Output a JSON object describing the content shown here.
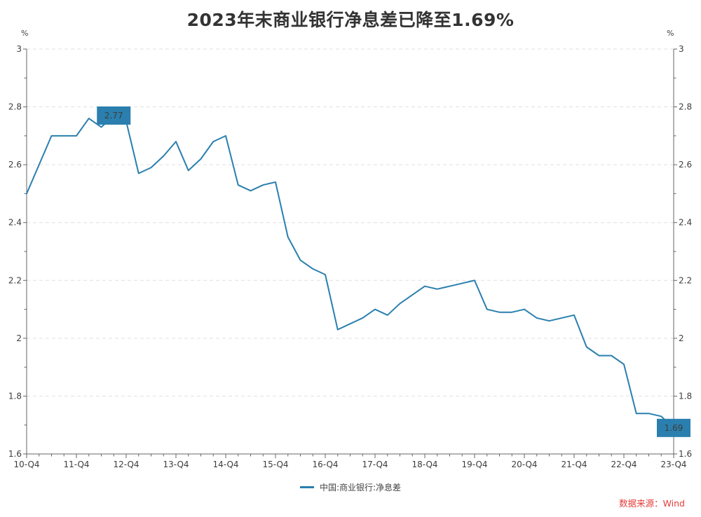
{
  "title": {
    "text": "2023年末商业银行净息差已降至1.69%"
  },
  "chart_data": {
    "type": "line",
    "title": "2023年末商业银行净息差已降至1.69%",
    "y_axis": {
      "unit": "%",
      "min": 1.6,
      "max": 3,
      "major_step": 0.2,
      "minor_step": 0.1,
      "tick_labels": [
        "3",
        "2.8",
        "2.6",
        "2.4",
        "2.2",
        "2",
        "1.8",
        "1.6"
      ],
      "sides": "both",
      "grid": "dashed-horizontal-major"
    },
    "x_axis": {
      "tick_labels": [
        "10-Q4",
        "11-Q4",
        "12-Q4",
        "13-Q4",
        "14-Q4",
        "15-Q4",
        "16-Q4",
        "17-Q4",
        "18-Q4",
        "19-Q4",
        "20-Q4",
        "21-Q4",
        "22-Q4",
        "23-Q4"
      ],
      "minor_ticks": "quarterly"
    },
    "x": [
      "10-Q4",
      "11-Q1",
      "11-Q2",
      "11-Q3",
      "11-Q4",
      "12-Q1",
      "12-Q2",
      "12-Q3",
      "12-Q4",
      "13-Q1",
      "13-Q2",
      "13-Q3",
      "13-Q4",
      "14-Q1",
      "14-Q2",
      "14-Q3",
      "14-Q4",
      "15-Q1",
      "15-Q2",
      "15-Q3",
      "15-Q4",
      "16-Q1",
      "16-Q2",
      "16-Q3",
      "16-Q4",
      "17-Q1",
      "17-Q2",
      "17-Q3",
      "17-Q4",
      "18-Q1",
      "18-Q2",
      "18-Q3",
      "18-Q4",
      "19-Q1",
      "19-Q2",
      "19-Q3",
      "19-Q4",
      "20-Q1",
      "20-Q2",
      "20-Q3",
      "20-Q4",
      "21-Q1",
      "21-Q2",
      "21-Q3",
      "21-Q4",
      "22-Q1",
      "22-Q2",
      "22-Q3",
      "22-Q4",
      "23-Q1",
      "23-Q2",
      "23-Q3",
      "23-Q4"
    ],
    "series": [
      {
        "name": "中国:商业银行:净息差",
        "color": "#2a7fae",
        "values": [
          2.5,
          2.6,
          2.7,
          2.7,
          2.7,
          2.76,
          2.73,
          2.77,
          2.75,
          2.57,
          2.59,
          2.63,
          2.68,
          2.58,
          2.62,
          2.68,
          2.7,
          2.53,
          2.51,
          2.53,
          2.54,
          2.35,
          2.27,
          2.24,
          2.22,
          2.03,
          2.05,
          2.07,
          2.1,
          2.08,
          2.12,
          2.15,
          2.18,
          2.17,
          2.18,
          2.19,
          2.2,
          2.1,
          2.09,
          2.09,
          2.1,
          2.07,
          2.06,
          2.07,
          2.08,
          1.97,
          1.94,
          1.94,
          1.91,
          1.74,
          1.74,
          1.73,
          1.69
        ]
      }
    ],
    "annotations": [
      {
        "index": 7,
        "label": "2.77"
      },
      {
        "index": 52,
        "label": "1.69"
      }
    ],
    "legend_position": "bottom-center"
  },
  "source": {
    "text": "数据来源：Wind",
    "color": "#e23b38"
  },
  "colors": {
    "accent": "#2a7fae",
    "grid": "#e0e0e0",
    "axis": "#666666",
    "tick_label": "#3d3d3d",
    "annotation_text": "#ffffff"
  }
}
